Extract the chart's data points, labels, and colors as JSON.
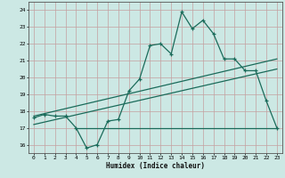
{
  "xlabel": "Humidex (Indice chaleur)",
  "xlim": [
    -0.5,
    23.5
  ],
  "ylim": [
    15.5,
    24.5
  ],
  "yticks": [
    16,
    17,
    18,
    19,
    20,
    21,
    22,
    23,
    24
  ],
  "xticks": [
    0,
    1,
    2,
    3,
    4,
    5,
    6,
    7,
    8,
    9,
    10,
    11,
    12,
    13,
    14,
    15,
    16,
    17,
    18,
    19,
    20,
    21,
    22,
    23
  ],
  "bg_color": "#cce8e4",
  "grid_color": "#c4a0a0",
  "line_color": "#1a6b5a",
  "main_line_x": [
    0,
    1,
    2,
    3,
    4,
    5,
    6,
    7,
    8,
    9,
    10,
    11,
    12,
    13,
    14,
    15,
    16,
    17,
    18,
    19,
    20,
    21,
    22,
    23
  ],
  "main_line_y": [
    17.6,
    17.8,
    17.7,
    17.7,
    17.0,
    15.8,
    16.0,
    17.4,
    17.5,
    19.2,
    19.9,
    21.9,
    22.0,
    21.4,
    23.9,
    22.9,
    23.4,
    22.6,
    21.1,
    21.1,
    20.4,
    20.4,
    18.6,
    17.0
  ],
  "trend1_x": [
    0,
    23
  ],
  "trend1_y": [
    17.7,
    21.1
  ],
  "trend2_x": [
    0,
    23
  ],
  "trend2_y": [
    17.2,
    20.5
  ],
  "hline_x": [
    4,
    23
  ],
  "hline_y": [
    17.0,
    17.0
  ]
}
